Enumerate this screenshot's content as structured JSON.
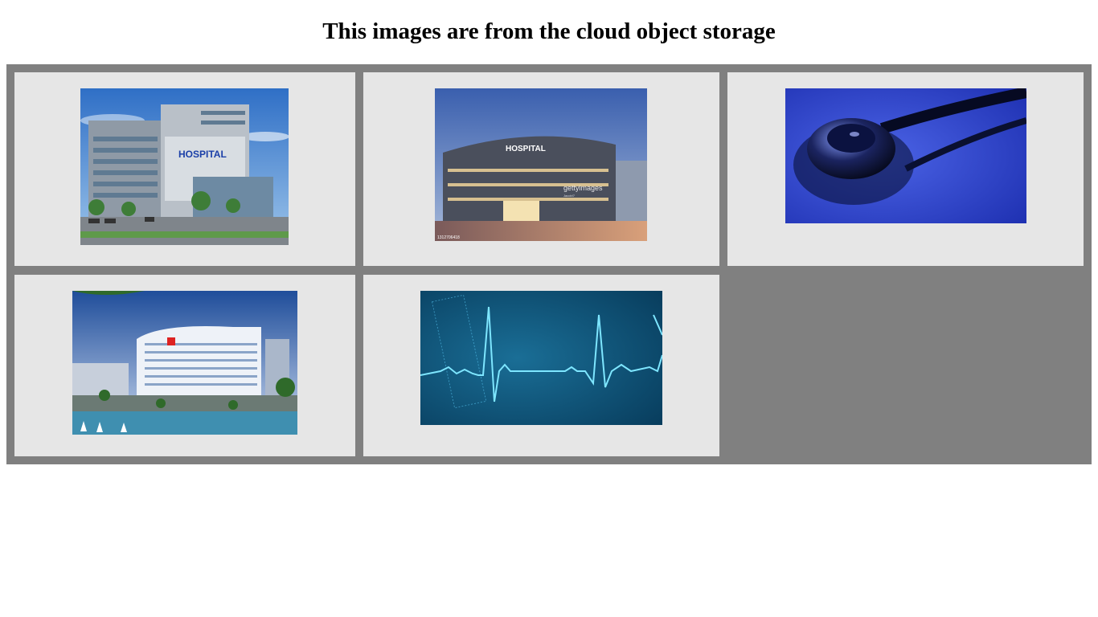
{
  "page": {
    "heading": "This images are from the cloud object storage"
  },
  "gallery": {
    "images": [
      {
        "subject": "hospital building with blue sky",
        "sign_text": "HOSPITAL"
      },
      {
        "subject": "curved hospital building at dusk",
        "sign_text": "HOSPITAL",
        "watermark": "gettyimages",
        "watermark_sub": "Jacob!7",
        "id_text": "1312706418"
      },
      {
        "subject": "stethoscope on blue background"
      },
      {
        "subject": "modern hospital complex aerial view"
      },
      {
        "subject": "ECG heartbeat trace on dark teal background"
      }
    ]
  },
  "colors": {
    "grid_background": "#808080",
    "cell_background": "#e6e6e6",
    "page_background": "#ffffff"
  }
}
